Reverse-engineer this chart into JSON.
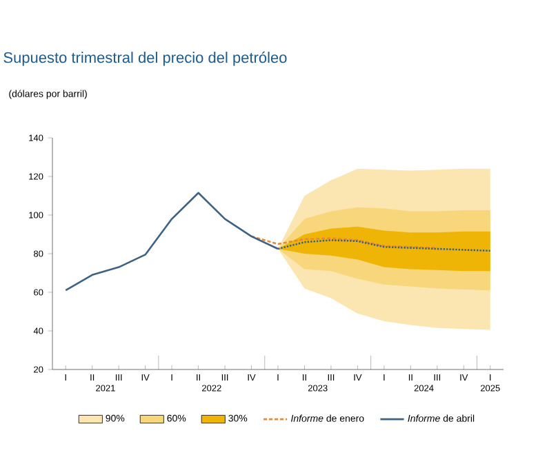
{
  "chart_data": {
    "type": "line",
    "title": "Supuesto trimestral del precio del petróleo",
    "ylabel": "(dólares por barril)",
    "categories": [
      "I",
      "II",
      "III",
      "IV",
      "I",
      "II",
      "III",
      "IV",
      "I",
      "II",
      "III",
      "IV",
      "I",
      "II",
      "III",
      "IV",
      "I"
    ],
    "annotations": [
      "2021",
      "2022",
      "2023",
      "2024",
      "2025"
    ],
    "ylim": [
      20,
      140
    ],
    "yticks": [
      20,
      40,
      60,
      80,
      100,
      120,
      140
    ],
    "grid": false,
    "legend": "bottom",
    "series": [
      {
        "name": "90%",
        "color": "#fbe6b2",
        "values": [
          null,
          null,
          null,
          null,
          null,
          null,
          null,
          null,
          null,
          null,
          null,
          null,
          null,
          null,
          null,
          null,
          null
        ],
        "upper": [
          null,
          null,
          null,
          null,
          null,
          null,
          null,
          null,
          82.5,
          110,
          118,
          124,
          123.5,
          123,
          123.5,
          124,
          124
        ],
        "lower": [
          null,
          null,
          null,
          null,
          null,
          null,
          null,
          null,
          82.5,
          62,
          57,
          49,
          45,
          43,
          41.5,
          41,
          40.5
        ]
      },
      {
        "name": "60%",
        "color": "#f7d67c",
        "values": [
          null,
          null,
          null,
          null,
          null,
          null,
          null,
          null,
          null,
          null,
          null,
          null,
          null,
          null,
          null,
          null,
          null
        ],
        "upper": [
          null,
          null,
          null,
          null,
          null,
          null,
          null,
          null,
          82.5,
          98,
          102,
          104,
          103.5,
          102,
          102,
          102.5,
          102.5
        ],
        "lower": [
          null,
          null,
          null,
          null,
          null,
          null,
          null,
          null,
          82.5,
          72,
          71,
          67,
          64,
          63,
          62,
          61.5,
          61
        ]
      },
      {
        "name": "30%",
        "color": "#efb506",
        "values": [
          null,
          null,
          null,
          null,
          null,
          null,
          null,
          null,
          null,
          null,
          null,
          null,
          null,
          null,
          null,
          null,
          null
        ],
        "upper": [
          null,
          null,
          null,
          null,
          null,
          null,
          null,
          null,
          82.5,
          90,
          93,
          94,
          92,
          91,
          91,
          91.5,
          91.5
        ],
        "lower": [
          null,
          null,
          null,
          null,
          null,
          null,
          null,
          null,
          82.5,
          80,
          79,
          77,
          73,
          72,
          71.5,
          71,
          71
        ]
      },
      {
        "name": "*Informe* de enero",
        "color": "#e8873a",
        "line_style": "dashed",
        "values": [
          null,
          null,
          null,
          null,
          null,
          null,
          null,
          89,
          85,
          87.5,
          88,
          87,
          84,
          83.5,
          83,
          null,
          null
        ]
      },
      {
        "name": "*Informe* de abril",
        "color": "#3d6283",
        "line_style": "solid",
        "values": [
          61,
          69,
          73,
          79.5,
          98,
          111.5,
          98,
          89,
          82.5,
          null,
          null,
          null,
          null,
          null,
          null,
          null,
          null
        ]
      },
      {
        "color": "#3d6283",
        "line_style": "dotted",
        "values": [
          null,
          null,
          null,
          null,
          null,
          null,
          null,
          null,
          82.5,
          86,
          87,
          86.5,
          83.5,
          83,
          82.5,
          82,
          81.5
        ]
      }
    ]
  }
}
